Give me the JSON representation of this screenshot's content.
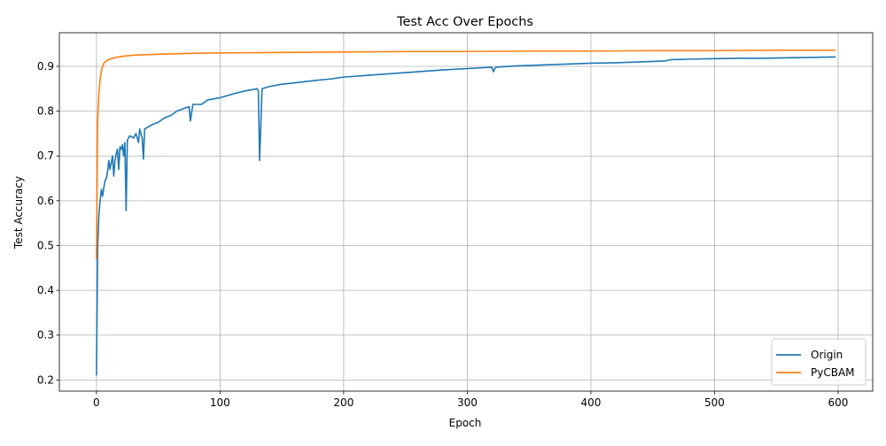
{
  "chart_data": {
    "type": "line",
    "title": "Test Acc Over Epochs",
    "xlabel": "Epoch",
    "ylabel": "Test Accuracy",
    "xlim": [
      -30,
      628
    ],
    "ylim": [
      0.175,
      0.975
    ],
    "xticks": [
      0,
      100,
      200,
      300,
      400,
      500,
      600
    ],
    "yticks": [
      0.2,
      0.3,
      0.4,
      0.5,
      0.6,
      0.7,
      0.8,
      0.9
    ],
    "ytick_labels": [
      "0.2",
      "0.3",
      "0.4",
      "0.5",
      "0.6",
      "0.7",
      "0.8",
      "0.9"
    ],
    "grid": true,
    "legend_position": "bottom-right",
    "series": [
      {
        "name": "Origin",
        "color": "#1f77b4",
        "points": [
          [
            0,
            0.21
          ],
          [
            1,
            0.5
          ],
          [
            2,
            0.57
          ],
          [
            3,
            0.6
          ],
          [
            4,
            0.625
          ],
          [
            5,
            0.61
          ],
          [
            6,
            0.63
          ],
          [
            7,
            0.645
          ],
          [
            8,
            0.65
          ],
          [
            9,
            0.665
          ],
          [
            10,
            0.69
          ],
          [
            11,
            0.67
          ],
          [
            12,
            0.685
          ],
          [
            13,
            0.7
          ],
          [
            14,
            0.655
          ],
          [
            15,
            0.69
          ],
          [
            16,
            0.705
          ],
          [
            17,
            0.715
          ],
          [
            18,
            0.67
          ],
          [
            19,
            0.72
          ],
          [
            20,
            0.715
          ],
          [
            21,
            0.725
          ],
          [
            22,
            0.7
          ],
          [
            23,
            0.73
          ],
          [
            24,
            0.578
          ],
          [
            25,
            0.735
          ],
          [
            27,
            0.745
          ],
          [
            30,
            0.74
          ],
          [
            32,
            0.75
          ],
          [
            34,
            0.73
          ],
          [
            35,
            0.76
          ],
          [
            37,
            0.74
          ],
          [
            38,
            0.693
          ],
          [
            39,
            0.76
          ],
          [
            42,
            0.765
          ],
          [
            45,
            0.77
          ],
          [
            50,
            0.775
          ],
          [
            55,
            0.785
          ],
          [
            60,
            0.79
          ],
          [
            65,
            0.8
          ],
          [
            70,
            0.805
          ],
          [
            75,
            0.81
          ],
          [
            76,
            0.778
          ],
          [
            78,
            0.815
          ],
          [
            85,
            0.815
          ],
          [
            90,
            0.825
          ],
          [
            100,
            0.83
          ],
          [
            110,
            0.838
          ],
          [
            120,
            0.845
          ],
          [
            130,
            0.85
          ],
          [
            131,
            0.845
          ],
          [
            132,
            0.69
          ],
          [
            134,
            0.85
          ],
          [
            140,
            0.855
          ],
          [
            150,
            0.86
          ],
          [
            160,
            0.863
          ],
          [
            175,
            0.868
          ],
          [
            190,
            0.872
          ],
          [
            200,
            0.876
          ],
          [
            220,
            0.88
          ],
          [
            240,
            0.884
          ],
          [
            260,
            0.888
          ],
          [
            280,
            0.892
          ],
          [
            300,
            0.895
          ],
          [
            320,
            0.898
          ],
          [
            321,
            0.888
          ],
          [
            323,
            0.898
          ],
          [
            340,
            0.901
          ],
          [
            360,
            0.903
          ],
          [
            380,
            0.905
          ],
          [
            400,
            0.907
          ],
          [
            420,
            0.908
          ],
          [
            440,
            0.91
          ],
          [
            460,
            0.912
          ],
          [
            465,
            0.915
          ],
          [
            480,
            0.916
          ],
          [
            500,
            0.917
          ],
          [
            520,
            0.918
          ],
          [
            540,
            0.918
          ],
          [
            560,
            0.919
          ],
          [
            580,
            0.92
          ],
          [
            598,
            0.921
          ]
        ]
      },
      {
        "name": "PyCBAM",
        "color": "#ff7f0e",
        "points": [
          [
            0,
            0.47
          ],
          [
            1,
            0.78
          ],
          [
            2,
            0.84
          ],
          [
            3,
            0.87
          ],
          [
            4,
            0.89
          ],
          [
            5,
            0.9
          ],
          [
            6,
            0.907
          ],
          [
            8,
            0.912
          ],
          [
            10,
            0.915
          ],
          [
            14,
            0.919
          ],
          [
            20,
            0.922
          ],
          [
            30,
            0.925
          ],
          [
            50,
            0.927
          ],
          [
            75,
            0.929
          ],
          [
            100,
            0.93
          ],
          [
            150,
            0.931
          ],
          [
            200,
            0.932
          ],
          [
            250,
            0.933
          ],
          [
            300,
            0.933
          ],
          [
            350,
            0.934
          ],
          [
            400,
            0.934
          ],
          [
            450,
            0.935
          ],
          [
            500,
            0.935
          ],
          [
            550,
            0.936
          ],
          [
            598,
            0.936
          ]
        ]
      }
    ]
  }
}
